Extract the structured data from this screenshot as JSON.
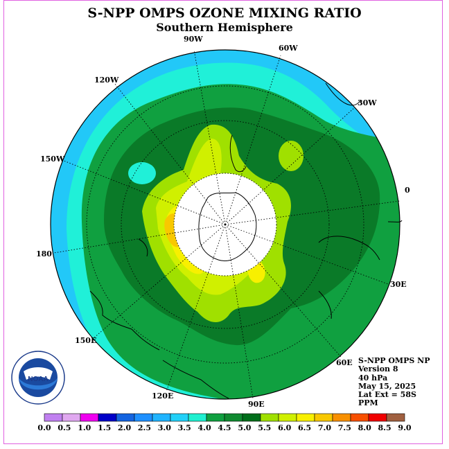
{
  "title": "S-NPP OMPS OZONE MIXING RATIO",
  "subtitle": "Southern Hemisphere",
  "longitude_labels": [
    "90W",
    "60W",
    "30W",
    "0",
    "30E",
    "60E",
    "90E",
    "120E",
    "150E",
    "180",
    "150W",
    "120W"
  ],
  "info": {
    "instrument": "S-NPP OMPS NP",
    "version": "Version 8",
    "level": "40 hPa",
    "date": "May 15, 2025",
    "lat_ext": "Lat Ext = 58S",
    "units": "PPM"
  },
  "logo_text": "NOAA",
  "logo_ring_text": "NATIONAL OCEANIC AND ATMOSPHERIC ADMINISTRATION · U.S. DEPARTMENT OF COMMERCE",
  "colorbar": {
    "ticks": [
      "0.0",
      "0.5",
      "1.0",
      "1.5",
      "2.0",
      "2.5",
      "3.0",
      "3.5",
      "4.0",
      "4.5",
      "5.0",
      "5.5",
      "6.0",
      "6.5",
      "7.0",
      "7.5",
      "8.0",
      "8.5",
      "9.0"
    ],
    "colors": [
      "#c080f0",
      "#e0a8f0",
      "#f000f0",
      "#0000c8",
      "#1464e0",
      "#1e90ff",
      "#20b4ff",
      "#22d0f8",
      "#20f0d0",
      "#10a040",
      "#108a30",
      "#006e1a",
      "#a0e000",
      "#d0f000",
      "#f8f000",
      "#f8c800",
      "#f89000",
      "#f85000",
      "#f00000",
      "#a06040"
    ]
  },
  "fill_colors": {
    "c35": "#22c8f8",
    "c40": "#20f0d8",
    "c45": "#10a040",
    "c50": "#0a7a28",
    "c55": "#a0e000",
    "c60": "#d0f000",
    "c65": "#f8f000",
    "c70": "#f8c800",
    "c75": "#f89000",
    "nodata": "#ffffff"
  }
}
